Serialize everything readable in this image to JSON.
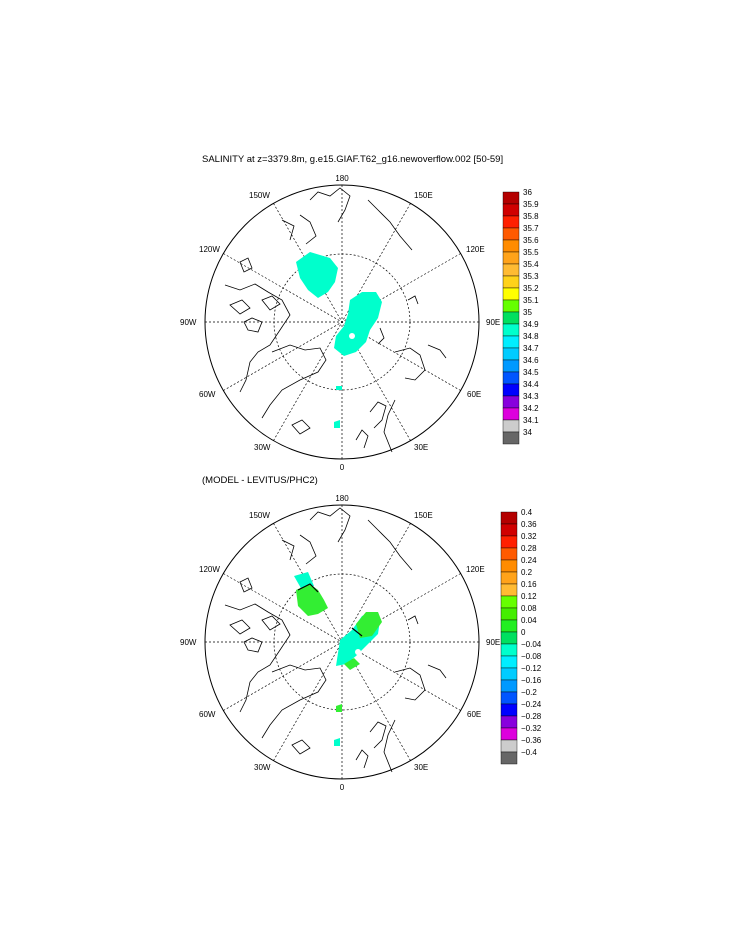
{
  "panels": [
    {
      "title": "SALINITY at z=3379.8m, g.e15.GIAF.T62_g16.newoverflow.002 [50-59]",
      "lon_labels": {
        "top": "180",
        "bottom": "0",
        "left": "90W",
        "right": "90E",
        "ul1": "150W",
        "ul2": "120W",
        "ur1": "150E",
        "ur2": "120E",
        "ll1": "60W",
        "ll2": "30W",
        "lr1": "60E",
        "lr2": "30E"
      },
      "colorbar": [
        "36",
        "35.9",
        "35.8",
        "35.7",
        "35.6",
        "35.5",
        "35.4",
        "35.3",
        "35.2",
        "35.1",
        "35",
        "34.9",
        "34.8",
        "34.7",
        "34.6",
        "34.5",
        "34.4",
        "34.3",
        "34.2",
        "34.1",
        "34"
      ]
    },
    {
      "title": "(MODEL - LEVITUS/PHC2)",
      "lon_labels": {
        "top": "180",
        "bottom": "0",
        "left": "90W",
        "right": "90E",
        "ul1": "150W",
        "ul2": "120W",
        "ur1": "150E",
        "ur2": "120E",
        "ll1": "60W",
        "ll2": "30W",
        "lr1": "60E",
        "lr2": "30E"
      },
      "colorbar": [
        "0.4",
        "0.36",
        "0.32",
        "0.28",
        "0.24",
        "0.2",
        "0.16",
        "0.12",
        "0.08",
        "0.04",
        "0",
        "−0.04",
        "−0.08",
        "−0.12",
        "−0.16",
        "−0.2",
        "−0.24",
        "−0.28",
        "−0.32",
        "−0.36",
        "−0.4"
      ]
    }
  ],
  "colors": {
    "top_bar": [
      "#b40000",
      "#d00000",
      "#ff2000",
      "#ff5a00",
      "#ff8c00",
      "#ffa31a",
      "#ffbb33",
      "#ffd21a",
      "#ffff00",
      "#66ff00",
      "#00e060",
      "#00ffcc",
      "#00eeff",
      "#00ccff",
      "#0099ff",
      "#0055ff",
      "#0000ff",
      "#8800dd",
      "#dd00dd",
      "#cccccc",
      "#666666"
    ],
    "bottom_bar": [
      "#b40000",
      "#d00000",
      "#ff2000",
      "#ff5a00",
      "#ff8c00",
      "#ffa31a",
      "#ffbb33",
      "#66ff00",
      "#44ee00",
      "#22ee22",
      "#00e060",
      "#00ffcc",
      "#00eeff",
      "#00ccff",
      "#0099ff",
      "#0055ff",
      "#0000ff",
      "#8800dd",
      "#dd00dd",
      "#cccccc",
      "#666666"
    ],
    "teal": "#00ffcc",
    "green": "#33ee33"
  }
}
